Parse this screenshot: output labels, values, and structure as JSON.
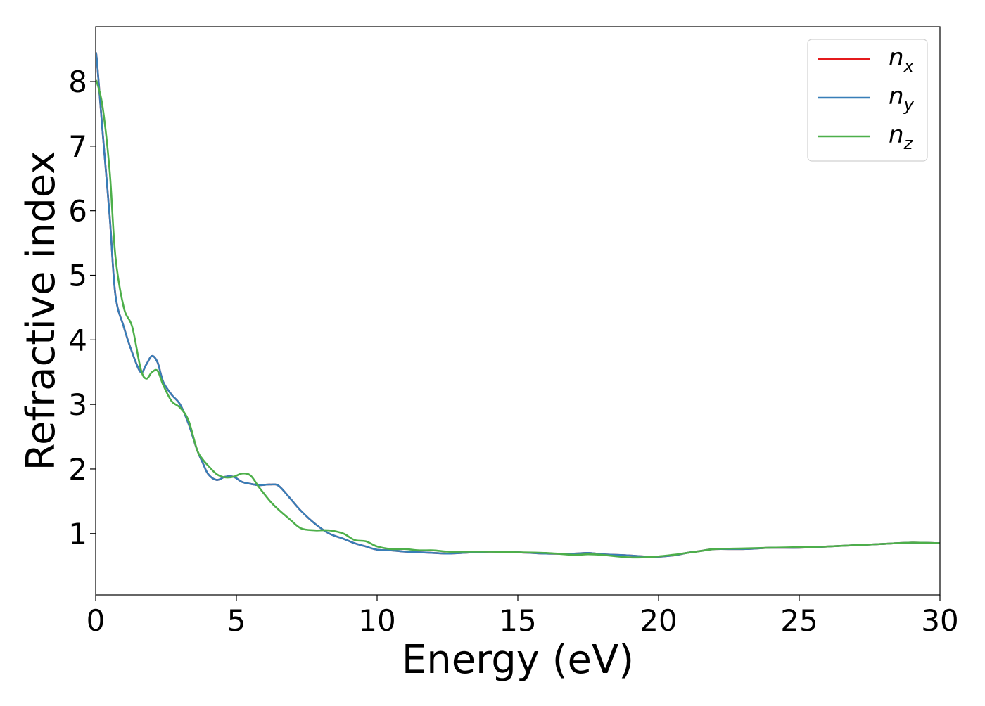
{
  "chart_data": {
    "type": "line",
    "xlabel": "Energy (eV)",
    "ylabel": "Refractive index",
    "xlim": [
      0,
      30
    ],
    "ylim": [
      0.05,
      8.85
    ],
    "xticks": [
      0,
      5,
      10,
      15,
      20,
      25,
      30
    ],
    "yticks": [
      1,
      2,
      3,
      4,
      5,
      6,
      7,
      8
    ],
    "grid": false,
    "legend_position": "top-right",
    "x": [
      0,
      0.05,
      0.25,
      0.5,
      0.7,
      1.0,
      1.3,
      1.6,
      1.8,
      2.0,
      2.2,
      2.4,
      2.7,
      3.0,
      3.3,
      3.6,
      3.8,
      4.0,
      4.3,
      4.6,
      4.9,
      5.2,
      5.5,
      5.8,
      6.2,
      6.5,
      6.9,
      7.3,
      7.8,
      8.3,
      8.8,
      9.2,
      9.6,
      10.0,
      10.5,
      11.0,
      11.5,
      12.0,
      12.5,
      13.0,
      14.0,
      15.0,
      16.0,
      17.0,
      17.5,
      18.0,
      19.0,
      19.8,
      20.5,
      21.0,
      21.5,
      22.0,
      23.0,
      24.0,
      25.0,
      26.0,
      27.0,
      28.0,
      29.0,
      30.0
    ],
    "series": [
      {
        "name": "n",
        "name_sub": "x",
        "color": "#e41a1c",
        "values": [
          8.45,
          8.3,
          7.2,
          5.9,
          4.7,
          4.2,
          3.8,
          3.5,
          3.62,
          3.75,
          3.65,
          3.35,
          3.15,
          3.0,
          2.7,
          2.3,
          2.1,
          1.92,
          1.83,
          1.88,
          1.88,
          1.8,
          1.77,
          1.75,
          1.76,
          1.74,
          1.55,
          1.35,
          1.15,
          1.0,
          0.92,
          0.85,
          0.8,
          0.75,
          0.74,
          0.72,
          0.71,
          0.7,
          0.69,
          0.7,
          0.72,
          0.71,
          0.69,
          0.69,
          0.7,
          0.68,
          0.66,
          0.64,
          0.66,
          0.7,
          0.73,
          0.76,
          0.76,
          0.78,
          0.78,
          0.8,
          0.82,
          0.84,
          0.86,
          0.85
        ]
      },
      {
        "name": "n",
        "name_sub": "y",
        "color": "#377eb8",
        "values": [
          8.45,
          8.3,
          7.2,
          5.9,
          4.7,
          4.2,
          3.8,
          3.5,
          3.62,
          3.75,
          3.65,
          3.35,
          3.15,
          3.0,
          2.7,
          2.3,
          2.1,
          1.92,
          1.83,
          1.88,
          1.88,
          1.8,
          1.77,
          1.75,
          1.76,
          1.74,
          1.55,
          1.35,
          1.15,
          1.0,
          0.92,
          0.85,
          0.8,
          0.75,
          0.74,
          0.72,
          0.71,
          0.7,
          0.69,
          0.7,
          0.72,
          0.71,
          0.69,
          0.69,
          0.7,
          0.68,
          0.66,
          0.64,
          0.66,
          0.7,
          0.73,
          0.76,
          0.76,
          0.78,
          0.78,
          0.8,
          0.82,
          0.84,
          0.86,
          0.85
        ]
      },
      {
        "name": "n",
        "name_sub": "z",
        "color": "#4daf4a",
        "values": [
          8.0,
          7.98,
          7.6,
          6.6,
          5.3,
          4.5,
          4.2,
          3.55,
          3.4,
          3.5,
          3.52,
          3.3,
          3.05,
          2.95,
          2.75,
          2.3,
          2.15,
          2.05,
          1.92,
          1.87,
          1.88,
          1.93,
          1.9,
          1.72,
          1.5,
          1.37,
          1.22,
          1.08,
          1.05,
          1.05,
          1.0,
          0.9,
          0.88,
          0.8,
          0.76,
          0.76,
          0.74,
          0.74,
          0.72,
          0.72,
          0.72,
          0.71,
          0.7,
          0.67,
          0.68,
          0.67,
          0.63,
          0.64,
          0.67,
          0.7,
          0.73,
          0.76,
          0.77,
          0.78,
          0.79,
          0.8,
          0.82,
          0.84,
          0.86,
          0.85
        ]
      }
    ]
  }
}
